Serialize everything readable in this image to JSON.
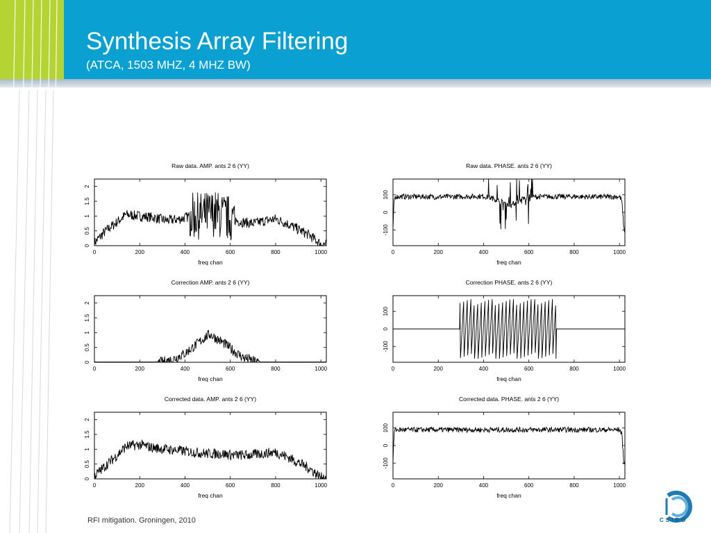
{
  "slide": {
    "title": "Synthesis Array Filtering",
    "subtitle": "(ATCA, 1503 MHZ, 4 MHZ BW)",
    "footer": "RFI mitigation.  Groningen, 2010",
    "logo_text": "CSIRO"
  },
  "colors": {
    "header": "#0aa0d2",
    "accent_lime": "#b6d334",
    "trace": "#000000"
  },
  "chart_data": [
    {
      "type": "line",
      "title": "Raw data. AMP. ants  2 6  (YY)",
      "xlabel": "freq chan",
      "ylabel": "",
      "xlim": [
        0,
        1024
      ],
      "ylim": [
        0,
        2.25
      ],
      "xticks": [
        "0",
        "200",
        "400",
        "600",
        "800",
        "1000"
      ],
      "yticks": [
        "0",
        "0.5",
        "1",
        "1.5",
        "2"
      ],
      "series": [
        {
          "x": [
            0,
            50,
            100,
            140,
            200,
            260,
            320,
            380,
            420,
            460,
            500,
            530,
            560,
            600,
            650,
            700,
            760,
            800,
            850,
            900,
            950,
            1000,
            1024
          ],
          "y": [
            0.1,
            0.5,
            0.8,
            1.05,
            1.0,
            0.95,
            0.85,
            0.9,
            1.0,
            1.0,
            1.05,
            1.1,
            1.0,
            0.9,
            0.8,
            0.75,
            0.85,
            0.9,
            0.75,
            0.55,
            0.35,
            0.05,
            0.05
          ]
        }
      ]
    },
    {
      "type": "line",
      "title": "Raw data. PHASE. ants  2 6  (YY)",
      "xlabel": "freq chan",
      "ylabel": "",
      "xlim": [
        0,
        1024
      ],
      "ylim": [
        -190,
        190
      ],
      "xticks": [
        "0",
        "200",
        "400",
        "600",
        "800",
        "1000"
      ],
      "yticks": [
        "-100",
        "0",
        "100"
      ],
      "series": [
        {
          "x": [
            0,
            5,
            10,
            100,
            200,
            300,
            400,
            440,
            480,
            520,
            560,
            600,
            700,
            800,
            900,
            1000,
            1010,
            1020
          ],
          "y": [
            -90,
            70,
            90,
            90,
            88,
            90,
            92,
            80,
            60,
            40,
            70,
            88,
            90,
            90,
            88,
            90,
            70,
            -100
          ]
        }
      ]
    },
    {
      "type": "line",
      "title": "Correction AMP. ants  2 6  (YY)",
      "xlabel": "freq chan",
      "ylabel": "",
      "xlim": [
        0,
        1024
      ],
      "ylim": [
        0,
        2.25
      ],
      "xticks": [
        "0",
        "200",
        "400",
        "600",
        "800",
        "1000"
      ],
      "yticks": [
        "0",
        "0.5",
        "1",
        "1.5",
        "2"
      ],
      "series": [
        {
          "x": [
            0,
            290,
            340,
            400,
            450,
            490,
            510,
            540,
            580,
            620,
            660,
            720,
            1024
          ],
          "y": [
            0.0,
            0.0,
            0.08,
            0.3,
            0.6,
            0.85,
            0.95,
            0.8,
            0.6,
            0.35,
            0.15,
            0.0,
            0.0
          ]
        }
      ]
    },
    {
      "type": "line",
      "title": "Correction PHASE. ants  2 6  (YY)",
      "xlabel": "freq chan",
      "ylabel": "",
      "xlim": [
        0,
        1024
      ],
      "ylim": [
        -190,
        190
      ],
      "xticks": [
        "0",
        "200",
        "400",
        "600",
        "800",
        "1000"
      ],
      "yticks": [
        "-100",
        "0",
        "100"
      ],
      "series": [
        {
          "x": [
            0,
            290,
            295,
            720,
            725,
            1024
          ],
          "y": [
            0,
            0,
            0,
            0,
            0,
            0
          ]
        }
      ]
    },
    {
      "type": "line",
      "title": "Corrected data. AMP. ants  2 6  (YY)",
      "xlabel": "freq chan",
      "ylabel": "",
      "xlim": [
        0,
        1024
      ],
      "ylim": [
        0,
        2.25
      ],
      "xticks": [
        "0",
        "200",
        "400",
        "600",
        "800",
        "1000"
      ],
      "yticks": [
        "0",
        "0.5",
        "1",
        "1.5",
        "2"
      ],
      "series": [
        {
          "x": [
            0,
            50,
            100,
            140,
            200,
            260,
            320,
            380,
            440,
            500,
            560,
            620,
            680,
            740,
            800,
            850,
            900,
            950,
            1000,
            1024
          ],
          "y": [
            0.1,
            0.45,
            0.8,
            1.1,
            1.15,
            1.05,
            1.0,
            0.95,
            0.9,
            0.85,
            0.85,
            0.8,
            0.8,
            0.85,
            0.9,
            0.75,
            0.55,
            0.35,
            0.05,
            0.05
          ]
        }
      ]
    },
    {
      "type": "line",
      "title": "Corrected data. PHASE. ants  2 6  (YY)",
      "xlabel": "freq chan",
      "ylabel": "",
      "xlim": [
        0,
        1024
      ],
      "ylim": [
        -190,
        190
      ],
      "xticks": [
        "0",
        "200",
        "400",
        "600",
        "800",
        "1000"
      ],
      "yticks": [
        "-100",
        "0",
        "100"
      ],
      "series": [
        {
          "x": [
            0,
            5,
            10,
            100,
            300,
            500,
            700,
            900,
            1000,
            1010,
            1020
          ],
          "y": [
            -90,
            75,
            90,
            90,
            90,
            90,
            90,
            90,
            90,
            70,
            -100
          ]
        }
      ]
    }
  ]
}
